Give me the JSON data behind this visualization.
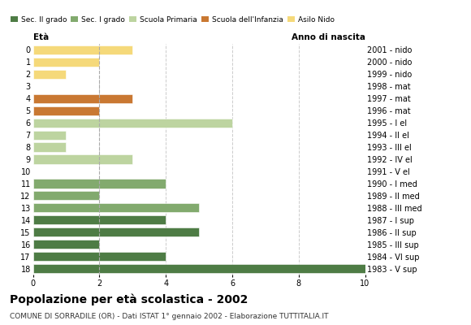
{
  "ages": [
    18,
    17,
    16,
    15,
    14,
    13,
    12,
    11,
    10,
    9,
    8,
    7,
    6,
    5,
    4,
    3,
    2,
    1,
    0
  ],
  "years": [
    "1983 - V sup",
    "1984 - VI sup",
    "1985 - III sup",
    "1986 - II sup",
    "1987 - I sup",
    "1988 - III med",
    "1989 - II med",
    "1990 - I med",
    "1991 - V el",
    "1992 - IV el",
    "1993 - III el",
    "1994 - II el",
    "1995 - I el",
    "1996 - mat",
    "1997 - mat",
    "1998 - mat",
    "1999 - nido",
    "2000 - nido",
    "2001 - nido"
  ],
  "values": [
    10,
    4,
    2,
    5,
    4,
    5,
    2,
    4,
    0,
    3,
    1,
    1,
    6,
    2,
    3,
    0,
    1,
    2,
    3
  ],
  "categories": [
    "Sec. II grado",
    "Sec. I grado",
    "Scuola Primaria",
    "Scuola dell'Infanzia",
    "Asilo Nido"
  ],
  "colors": {
    "Sec. II grado": "#4e7c45",
    "Sec. I grado": "#82aa6e",
    "Scuola Primaria": "#bdd4a0",
    "Scuola dell'Infanzia": "#c97832",
    "Asilo Nido": "#f5d97a"
  },
  "bar_colors": [
    "#4e7c45",
    "#4e7c45",
    "#4e7c45",
    "#4e7c45",
    "#4e7c45",
    "#82aa6e",
    "#82aa6e",
    "#82aa6e",
    "#bdd4a0",
    "#bdd4a0",
    "#bdd4a0",
    "#bdd4a0",
    "#bdd4a0",
    "#c97832",
    "#c97832",
    "#c97832",
    "#f5d97a",
    "#f5d97a",
    "#f5d97a"
  ],
  "title": "Popolazione per età scolastica - 2002",
  "subtitle": "COMUNE DI SORRADILE (OR) - Dati ISTAT 1° gennaio 2002 - Elaborazione TUTTITALIA.IT",
  "xlabel_eta": "Età",
  "xlabel_anno": "Anno di nascita",
  "xlim": [
    0,
    10
  ],
  "xticks": [
    0,
    2,
    4,
    6,
    8,
    10
  ],
  "grid_color": "#cccccc",
  "background_color": "#ffffff",
  "dashed_line_x": 2
}
